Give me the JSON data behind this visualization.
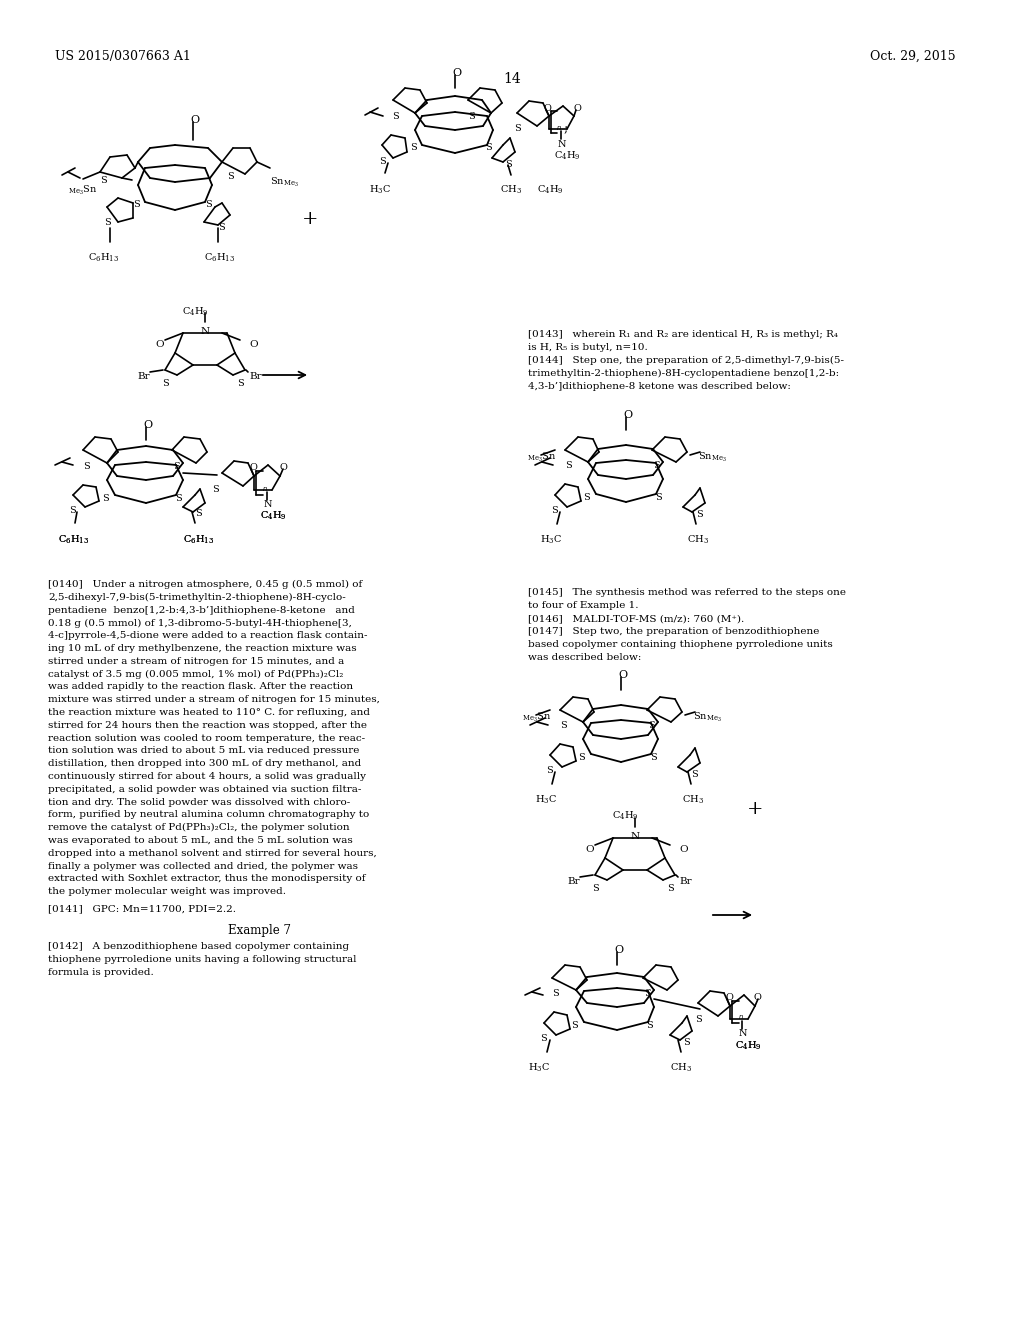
{
  "background_color": "#ffffff",
  "header_left": "US 2015/0307663 A1",
  "header_right": "Oct. 29, 2015",
  "page_number": "14",
  "text_color": "#000000",
  "font_size_body": 7.5,
  "font_size_header": 9.0
}
